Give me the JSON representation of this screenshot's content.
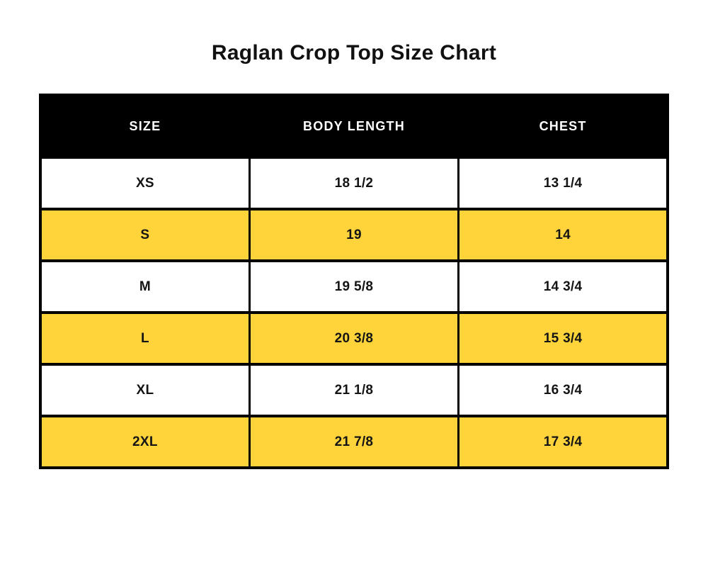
{
  "page_title": "Raglan Crop Top Size Chart",
  "colors": {
    "page_background": "#FFFFFF",
    "header_background": "#000000",
    "header_text": "#FFFFFF",
    "row_plain_background": "#FFFFFF",
    "row_highlight_background": "#FFD43B",
    "border": "#000000",
    "body_text": "#141414"
  },
  "chart_data": {
    "type": "table",
    "title": "Raglan Crop Top Size Chart",
    "columns": [
      "SIZE",
      "BODY LENGTH",
      "CHEST"
    ],
    "rows": [
      {
        "highlighted": false,
        "cells": [
          "XS",
          "18 1/2",
          "13 1/4"
        ]
      },
      {
        "highlighted": true,
        "cells": [
          "S",
          "19",
          "14"
        ]
      },
      {
        "highlighted": false,
        "cells": [
          "M",
          "19 5/8",
          "14 3/4"
        ]
      },
      {
        "highlighted": true,
        "cells": [
          "L",
          "20 3/8",
          "15 3/4"
        ]
      },
      {
        "highlighted": false,
        "cells": [
          "XL",
          "21 1/8",
          "16 3/4"
        ]
      },
      {
        "highlighted": true,
        "cells": [
          "2XL",
          "21 7/8",
          "17 3/4"
        ]
      }
    ],
    "layout": {
      "highlight_pattern": "alternating rows S, L, 2XL highlighted yellow",
      "grid": "full black gridlines, thick outer border"
    }
  }
}
